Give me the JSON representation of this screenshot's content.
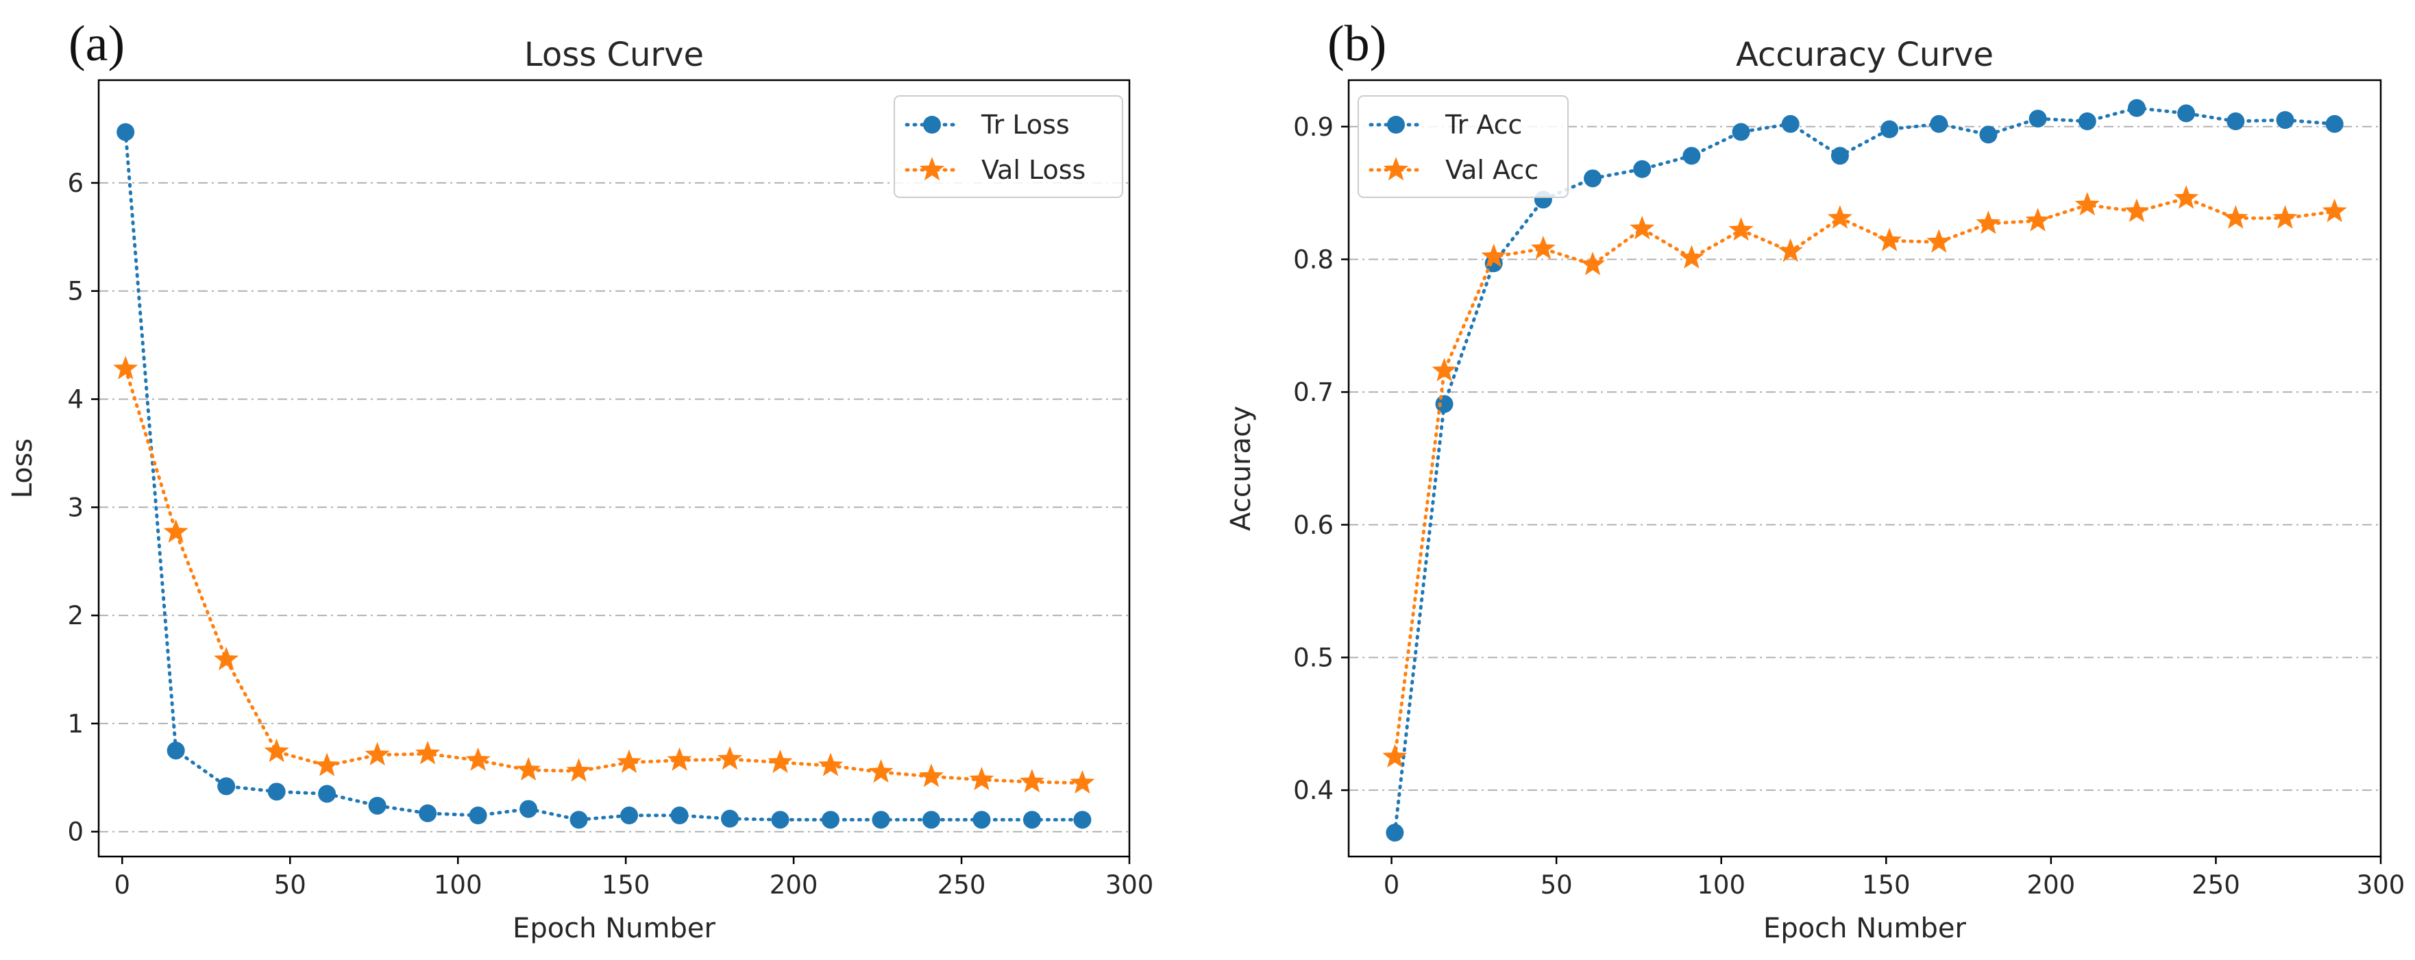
{
  "figure": {
    "panels": [
      {
        "label": "(a)"
      },
      {
        "label": "(b)"
      }
    ]
  },
  "chart_data": [
    {
      "type": "line",
      "title": "Loss Curve",
      "xlabel": "Epoch Number",
      "ylabel": "Loss",
      "xlim": [
        -7,
        300
      ],
      "ylim": [
        -0.23,
        6.95
      ],
      "xticks": [
        0,
        50,
        100,
        150,
        200,
        250,
        300
      ],
      "yticks": [
        0,
        1,
        2,
        3,
        4,
        5,
        6
      ],
      "grid": "horizontal dash-dot",
      "legend_position": "top-right",
      "x": [
        1,
        16,
        31,
        46,
        61,
        76,
        91,
        106,
        121,
        136,
        151,
        166,
        181,
        196,
        211,
        226,
        241,
        256,
        271,
        286
      ],
      "series": [
        {
          "name": "Tr Loss",
          "marker": "circle",
          "color": "#1f77b4",
          "values": [
            6.47,
            0.75,
            0.42,
            0.37,
            0.35,
            0.24,
            0.17,
            0.15,
            0.21,
            0.11,
            0.15,
            0.15,
            0.12,
            0.11,
            0.11,
            0.11,
            0.11,
            0.11,
            0.11,
            0.11
          ]
        },
        {
          "name": "Val Loss",
          "marker": "star",
          "color": "#ff7f0e",
          "values": [
            4.28,
            2.77,
            1.59,
            0.74,
            0.61,
            0.71,
            0.72,
            0.66,
            0.57,
            0.56,
            0.64,
            0.66,
            0.67,
            0.64,
            0.61,
            0.55,
            0.51,
            0.48,
            0.46,
            0.45
          ]
        }
      ]
    },
    {
      "type": "line",
      "title": "Accuracy Curve",
      "xlabel": "Epoch Number",
      "ylabel": "Accuracy",
      "xlim": [
        -13,
        300
      ],
      "ylim": [
        0.35,
        0.935
      ],
      "xticks": [
        0,
        50,
        100,
        150,
        200,
        250,
        300
      ],
      "yticks": [
        0.4,
        0.5,
        0.6,
        0.7,
        0.8,
        0.9
      ],
      "grid": "horizontal dash-dot",
      "legend_position": "top-left",
      "x": [
        1,
        16,
        31,
        46,
        61,
        76,
        91,
        106,
        121,
        136,
        151,
        166,
        181,
        196,
        211,
        226,
        241,
        256,
        271,
        286
      ],
      "series": [
        {
          "name": "Tr Acc",
          "marker": "circle",
          "color": "#1f77b4",
          "values": [
            0.368,
            0.691,
            0.797,
            0.845,
            0.861,
            0.868,
            0.878,
            0.896,
            0.902,
            0.878,
            0.898,
            0.902,
            0.894,
            0.906,
            0.904,
            0.914,
            0.91,
            0.904,
            0.905,
            0.902
          ]
        },
        {
          "name": "Val Acc",
          "marker": "star",
          "color": "#ff7f0e",
          "values": [
            0.425,
            0.716,
            0.802,
            0.808,
            0.796,
            0.823,
            0.801,
            0.822,
            0.806,
            0.831,
            0.814,
            0.813,
            0.827,
            0.829,
            0.841,
            0.836,
            0.846,
            0.831,
            0.831,
            0.836
          ]
        }
      ]
    }
  ]
}
